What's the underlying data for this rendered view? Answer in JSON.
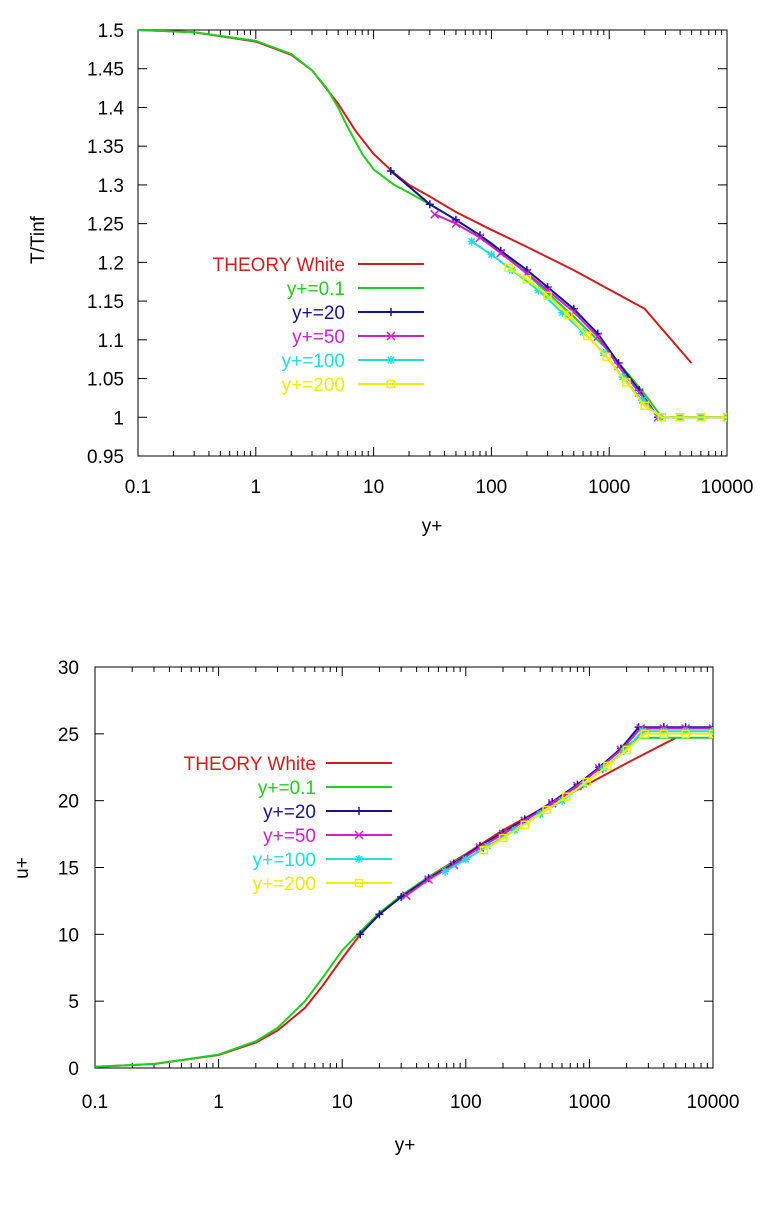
{
  "colors": {
    "theory": "#cc1f1f",
    "yp01": "#22cc22",
    "yp20": "#15158c",
    "yp50": "#cc22cc",
    "yp100": "#22dddd",
    "yp200": "#eeee00"
  },
  "chart_data": [
    {
      "type": "line",
      "xlabel": "y+",
      "ylabel": "T/Tinf",
      "xscale": "log",
      "xlim": [
        0.1,
        10000
      ],
      "ylim": [
        0.95,
        1.5
      ],
      "xticks": [
        "0.1",
        "1",
        "10",
        "100",
        "1000",
        "10000"
      ],
      "yticks": [
        "0.95",
        "1",
        "1.05",
        "1.1",
        "1.15",
        "1.2",
        "1.25",
        "1.3",
        "1.35",
        "1.4",
        "1.45",
        "1.5"
      ],
      "legend_position": "center-left",
      "grid": false,
      "series": [
        {
          "name": "THEORY White",
          "color": "theory",
          "marker": "none",
          "x": [
            0.1,
            0.3,
            1,
            2,
            3,
            5,
            7,
            10,
            15,
            20,
            30,
            50,
            100,
            200,
            500,
            1000,
            2000,
            5000
          ],
          "y": [
            1.5,
            1.497,
            1.485,
            1.468,
            1.448,
            1.405,
            1.37,
            1.34,
            1.315,
            1.3,
            1.285,
            1.265,
            1.242,
            1.22,
            1.19,
            1.165,
            1.14,
            1.07
          ]
        },
        {
          "name": "y+=0.1",
          "color": "yp01",
          "marker": "none",
          "x": [
            0.1,
            0.3,
            1,
            2,
            3,
            4,
            5,
            6,
            8,
            10,
            15,
            20,
            30,
            50,
            100,
            200,
            500,
            1000,
            2000,
            2800,
            10000
          ],
          "y": [
            1.5,
            1.497,
            1.486,
            1.469,
            1.448,
            1.425,
            1.4,
            1.375,
            1.34,
            1.32,
            1.3,
            1.29,
            1.275,
            1.255,
            1.225,
            1.185,
            1.13,
            1.085,
            1.03,
            1.0,
            1.0
          ]
        },
        {
          "name": "y+=20",
          "color": "yp20",
          "marker": "plus",
          "x": [
            14,
            30,
            50,
            80,
            120,
            200,
            300,
            500,
            800,
            1200,
            1800,
            2600,
            4000,
            6000,
            10000
          ],
          "y": [
            1.318,
            1.275,
            1.255,
            1.235,
            1.215,
            1.19,
            1.168,
            1.14,
            1.108,
            1.07,
            1.035,
            1.0,
            1.0,
            1.0,
            1.0
          ]
        },
        {
          "name": "y+=50",
          "color": "yp50",
          "marker": "x",
          "x": [
            33,
            50,
            80,
            120,
            200,
            300,
            500,
            800,
            1200,
            1800,
            2600,
            4000,
            6000,
            10000
          ],
          "y": [
            1.262,
            1.25,
            1.232,
            1.212,
            1.186,
            1.164,
            1.136,
            1.104,
            1.066,
            1.032,
            1.0,
            1.0,
            1.0,
            1.0
          ]
        },
        {
          "name": "y+=100",
          "color": "yp100",
          "marker": "star",
          "x": [
            68,
            100,
            150,
            250,
            400,
            600,
            900,
            1300,
            1900,
            2700,
            4000,
            6000,
            10000
          ],
          "y": [
            1.227,
            1.21,
            1.19,
            1.164,
            1.135,
            1.11,
            1.083,
            1.052,
            1.022,
            1.0,
            1.0,
            1.0,
            1.0
          ]
        },
        {
          "name": "y+=200",
          "color": "yp200",
          "marker": "square",
          "x": [
            140,
            200,
            300,
            450,
            650,
            950,
            1400,
            2000,
            2800,
            4000,
            6000,
            10000
          ],
          "y": [
            1.193,
            1.178,
            1.157,
            1.132,
            1.105,
            1.078,
            1.045,
            1.015,
            1.0,
            1.0,
            1.0,
            1.0
          ]
        }
      ]
    },
    {
      "type": "line",
      "xlabel": "y+",
      "ylabel": "u+",
      "xscale": "log",
      "xlim": [
        0.1,
        10000
      ],
      "ylim": [
        0,
        30
      ],
      "xticks": [
        "0.1",
        "1",
        "10",
        "100",
        "1000",
        "10000"
      ],
      "yticks": [
        "0",
        "5",
        "10",
        "15",
        "20",
        "25",
        "30"
      ],
      "legend_position": "top-left",
      "grid": false,
      "series": [
        {
          "name": "THEORY White",
          "color": "theory",
          "marker": "none",
          "x": [
            0.1,
            0.3,
            1,
            2,
            3,
            5,
            7,
            10,
            14,
            20,
            30,
            50,
            100,
            200,
            500,
            1000,
            2000,
            5000
          ],
          "y": [
            0.1,
            0.3,
            0.97,
            1.9,
            2.8,
            4.5,
            6.2,
            8.2,
            10.0,
            11.5,
            12.8,
            14.3,
            16.0,
            17.8,
            19.8,
            21.3,
            22.8,
            24.7
          ]
        },
        {
          "name": "y+=0.1",
          "color": "yp01",
          "marker": "none",
          "x": [
            0.1,
            0.3,
            1,
            2,
            3,
            5,
            7,
            10,
            14,
            20,
            30,
            50,
            100,
            200,
            500,
            1000,
            1800,
            2500,
            4000,
            10000
          ],
          "y": [
            0.1,
            0.3,
            1.0,
            2.0,
            3.0,
            5.0,
            6.8,
            8.8,
            10.2,
            11.6,
            12.9,
            14.3,
            15.9,
            17.5,
            19.8,
            21.8,
            23.8,
            24.7,
            24.7,
            24.7
          ]
        },
        {
          "name": "y+=20",
          "color": "yp20",
          "marker": "plus",
          "x": [
            14,
            20,
            30,
            50,
            80,
            130,
            200,
            300,
            500,
            800,
            1200,
            1800,
            2500,
            4000,
            6000,
            10000
          ],
          "y": [
            10.0,
            11.5,
            12.8,
            14.2,
            15.3,
            16.6,
            17.6,
            18.6,
            19.9,
            21.2,
            22.5,
            23.9,
            25.5,
            25.5,
            25.5,
            25.5
          ]
        },
        {
          "name": "y+=50",
          "color": "yp50",
          "marker": "x",
          "x": [
            33,
            50,
            80,
            130,
            200,
            300,
            500,
            800,
            1200,
            1800,
            2600,
            4000,
            6000,
            10000
          ],
          "y": [
            12.9,
            14.1,
            15.2,
            16.5,
            17.5,
            18.5,
            19.8,
            21.1,
            22.4,
            23.8,
            25.4,
            25.4,
            25.4,
            25.4
          ]
        },
        {
          "name": "y+=100",
          "color": "yp100",
          "marker": "star",
          "x": [
            68,
            100,
            150,
            250,
            400,
            600,
            900,
            1300,
            1900,
            2700,
            4000,
            6000,
            10000
          ],
          "y": [
            14.7,
            15.6,
            16.6,
            17.8,
            19.0,
            20.0,
            21.2,
            22.4,
            23.7,
            25.2,
            25.2,
            25.2,
            25.2
          ]
        },
        {
          "name": "y+=200",
          "color": "yp200",
          "marker": "square",
          "x": [
            140,
            200,
            300,
            450,
            650,
            950,
            1400,
            2000,
            2800,
            4000,
            6000,
            10000
          ],
          "y": [
            16.3,
            17.2,
            18.2,
            19.3,
            20.3,
            21.4,
            22.6,
            23.8,
            25.0,
            25.0,
            25.0,
            25.0
          ]
        }
      ]
    }
  ]
}
